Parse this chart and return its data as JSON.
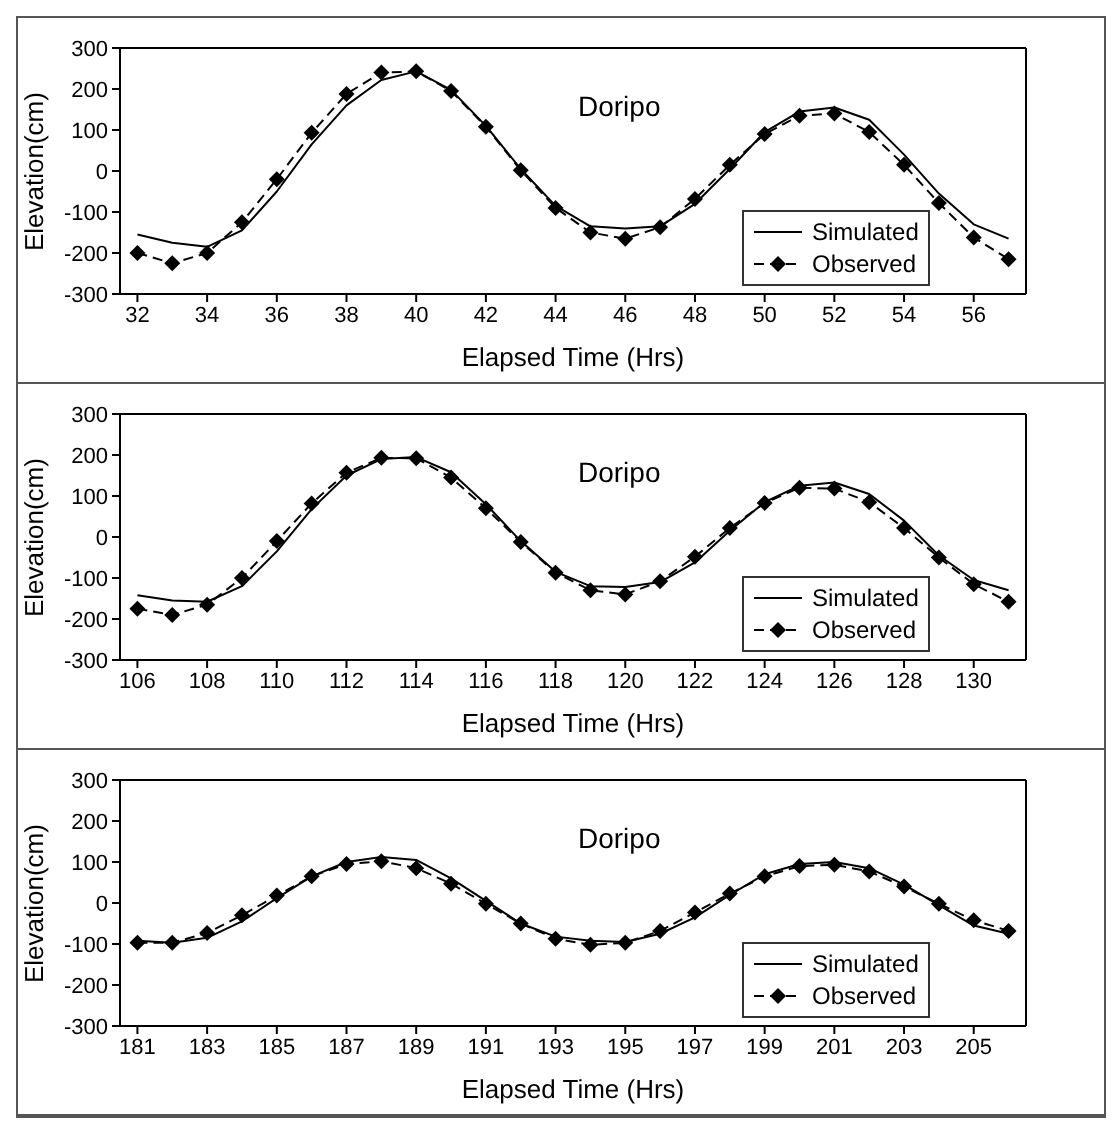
{
  "chart_data": [
    {
      "type": "line",
      "annotations": [
        "Doripo"
      ],
      "xlabel": "Elapsed Time (Hrs)",
      "ylabel": "Elevation(cm)",
      "x": [
        32,
        33,
        34,
        35,
        36,
        37,
        38,
        39,
        40,
        41,
        42,
        43,
        44,
        45,
        46,
        47,
        48,
        49,
        50,
        51,
        52,
        53,
        54,
        55,
        56,
        57
      ],
      "xlim": [
        31.5,
        57.5
      ],
      "xticks": [
        32,
        34,
        36,
        38,
        40,
        42,
        44,
        46,
        48,
        50,
        52,
        54,
        56
      ],
      "ylim": [
        -300,
        300
      ],
      "yticks": [
        -300,
        -200,
        -100,
        0,
        100,
        200,
        300
      ],
      "grid": false,
      "legend": "bottom right",
      "series": [
        {
          "name": "Simulated",
          "color": "#000000",
          "marker": "none",
          "line_style": "solid",
          "values": [
            -155,
            -175,
            -185,
            -145,
            -50,
            65,
            160,
            222,
            243,
            198,
            110,
            5,
            -85,
            -135,
            -140,
            -135,
            -80,
            5,
            95,
            145,
            155,
            125,
            40,
            -55,
            -130,
            -165
          ]
        },
        {
          "name": "Observed",
          "color": "#000000",
          "marker": "diamond",
          "line_style": "dashed",
          "values": [
            -200,
            -225,
            -200,
            -125,
            -20,
            93,
            188,
            240,
            243,
            195,
            108,
            2,
            -90,
            -150,
            -165,
            -137,
            -68,
            15,
            90,
            135,
            140,
            95,
            15,
            -78,
            -162,
            -215
          ]
        }
      ]
    },
    {
      "type": "line",
      "annotations": [
        "Doripo"
      ],
      "xlabel": "Elapsed Time (Hrs)",
      "ylabel": "Elevation(cm)",
      "x": [
        106,
        107,
        108,
        109,
        110,
        111,
        112,
        113,
        114,
        115,
        116,
        117,
        118,
        119,
        120,
        121,
        122,
        123,
        124,
        125,
        126,
        127,
        128,
        129,
        130,
        131
      ],
      "xlim": [
        105.5,
        131.5
      ],
      "xticks": [
        106,
        108,
        110,
        112,
        114,
        116,
        118,
        120,
        122,
        124,
        126,
        128,
        130
      ],
      "ylim": [
        -300,
        300
      ],
      "yticks": [
        -300,
        -200,
        -100,
        0,
        100,
        200,
        300
      ],
      "grid": false,
      "legend": "bottom right",
      "series": [
        {
          "name": "Simulated",
          "color": "#000000",
          "marker": "none",
          "line_style": "solid",
          "values": [
            -142,
            -155,
            -158,
            -120,
            -35,
            68,
            150,
            190,
            195,
            158,
            80,
            -10,
            -85,
            -120,
            -122,
            -110,
            -62,
            15,
            85,
            125,
            133,
            105,
            40,
            -45,
            -105,
            -130
          ]
        },
        {
          "name": "Observed",
          "color": "#000000",
          "marker": "diamond",
          "line_style": "dashed",
          "values": [
            -175,
            -190,
            -165,
            -100,
            -10,
            82,
            157,
            193,
            192,
            145,
            70,
            -12,
            -87,
            -130,
            -140,
            -108,
            -48,
            22,
            83,
            120,
            118,
            85,
            22,
            -50,
            -115,
            -158
          ]
        }
      ]
    },
    {
      "type": "line",
      "annotations": [
        "Doripo"
      ],
      "xlabel": "Elapsed Time (Hrs)",
      "ylabel": "Elevation(cm)",
      "x": [
        181,
        182,
        183,
        184,
        185,
        186,
        187,
        188,
        189,
        190,
        191,
        192,
        193,
        194,
        195,
        196,
        197,
        198,
        199,
        200,
        201,
        202,
        203,
        204,
        205,
        206
      ],
      "xlim": [
        180.5,
        206.5
      ],
      "xticks": [
        181,
        183,
        185,
        187,
        189,
        191,
        193,
        195,
        197,
        199,
        201,
        203,
        205
      ],
      "ylim": [
        -300,
        300
      ],
      "yticks": [
        -300,
        -200,
        -100,
        0,
        100,
        200,
        300
      ],
      "grid": false,
      "legend": "bottom right",
      "series": [
        {
          "name": "Simulated",
          "color": "#000000",
          "marker": "none",
          "line_style": "solid",
          "values": [
            -92,
            -97,
            -85,
            -45,
            12,
            65,
            100,
            112,
            105,
            60,
            5,
            -50,
            -82,
            -92,
            -95,
            -75,
            -35,
            20,
            70,
            95,
            100,
            85,
            45,
            -5,
            -55,
            -75
          ]
        },
        {
          "name": "Observed",
          "color": "#000000",
          "marker": "diamond",
          "line_style": "dashed",
          "values": [
            -97,
            -97,
            -73,
            -30,
            18,
            65,
            95,
            102,
            85,
            47,
            -2,
            -50,
            -87,
            -102,
            -97,
            -68,
            -23,
            23,
            65,
            90,
            93,
            77,
            40,
            -2,
            -42,
            -68
          ]
        }
      ]
    }
  ]
}
